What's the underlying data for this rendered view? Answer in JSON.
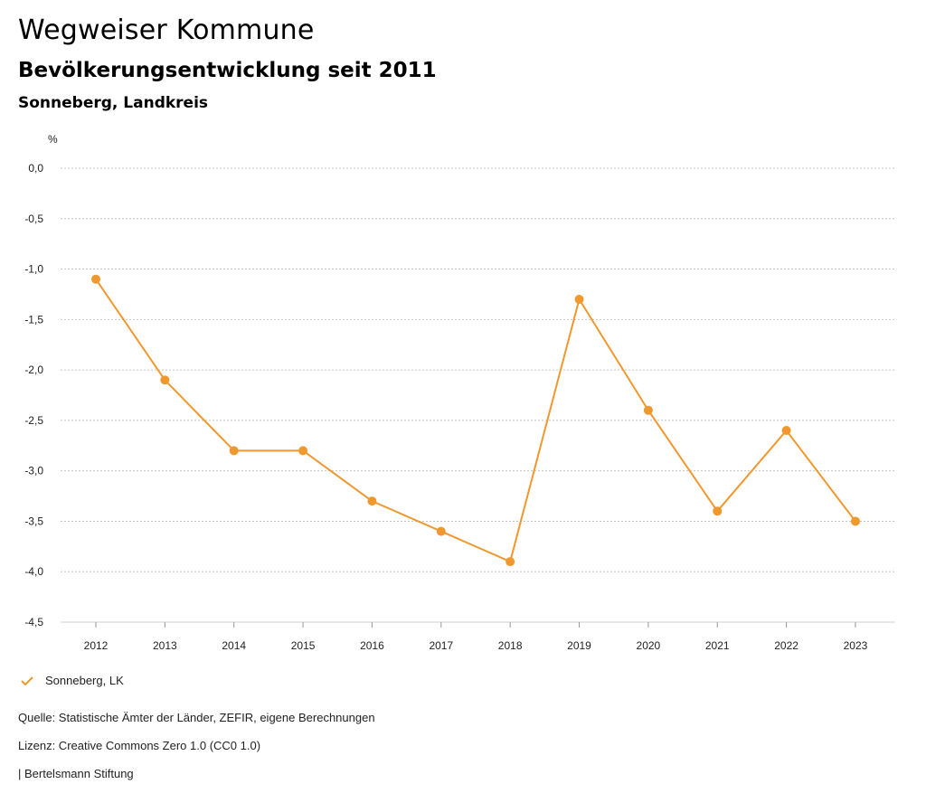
{
  "header": {
    "title": "Wegweiser Kommune",
    "subtitle": "Bevölkerungsentwicklung seit 2011",
    "region": "Sonneberg, Landkreis"
  },
  "chart_data": {
    "type": "line",
    "title": "Bevölkerungsentwicklung seit 2011",
    "ylabel": "%",
    "xlabel": "",
    "x": [
      "2012",
      "2013",
      "2014",
      "2015",
      "2016",
      "2017",
      "2018",
      "2019",
      "2020",
      "2021",
      "2022",
      "2023"
    ],
    "series": [
      {
        "name": "Sonneberg, LK",
        "color": "#F0982E",
        "values": [
          -1.1,
          -2.1,
          -2.8,
          -2.8,
          -3.3,
          -3.6,
          -3.9,
          -1.3,
          -2.4,
          -3.4,
          -2.6,
          -3.5
        ]
      }
    ],
    "ylim": [
      -4.5,
      0
    ],
    "yticks": [
      "0,0",
      "-0,5",
      "-1,0",
      "-1,5",
      "-2,0",
      "-2,5",
      "-3,0",
      "-3,5",
      "-4,0",
      "-4,5"
    ],
    "ytick_values": [
      0,
      -0.5,
      -1.0,
      -1.5,
      -2.0,
      -2.5,
      -3.0,
      -3.5,
      -4.0,
      -4.5
    ],
    "grid": true,
    "legend": "bottom-left"
  },
  "legend": {
    "label": "Sonneberg, LK"
  },
  "footer": {
    "source": "Quelle: Statistische Ämter der Länder, ZEFIR, eigene Berechnungen",
    "license": "Lizenz: Creative Commons Zero 1.0 (CC0 1.0)",
    "publisher": "| Bertelsmann Stiftung"
  }
}
